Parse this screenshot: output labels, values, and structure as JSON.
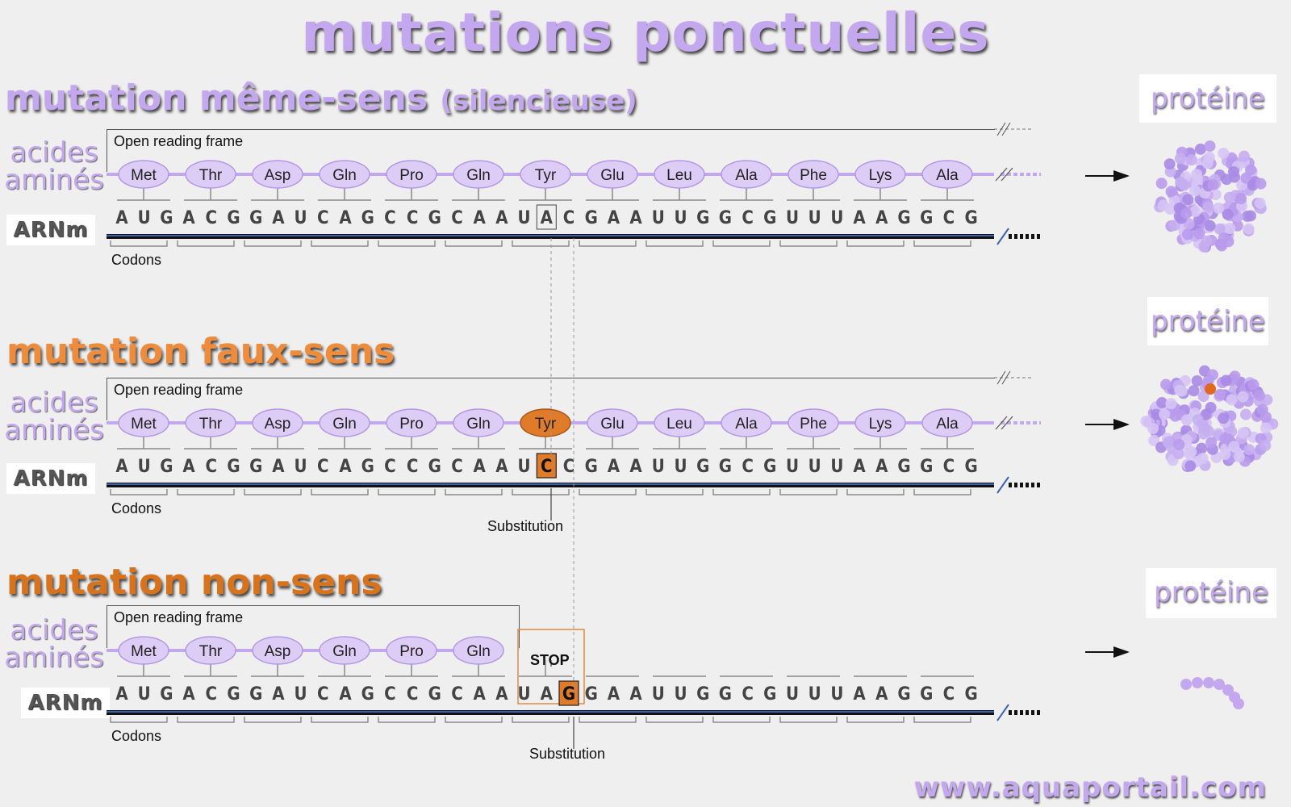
{
  "title": "mutations ponctuelles",
  "sections": [
    {
      "title": "mutation même-sens",
      "subtitle": "(silencieuse)"
    },
    {
      "title": "mutation faux-sens",
      "subtitle": ""
    },
    {
      "title": "mutation non-sens",
      "subtitle": ""
    }
  ],
  "labels": {
    "amino_acids": "acides aminés",
    "mrna": "ARNm",
    "open_reading_frame": "Open reading frame",
    "codons": "Codons",
    "substitution": "Substitution",
    "protein": "protéine",
    "stop": "STOP"
  },
  "amino_acids": [
    "Met",
    "Thr",
    "Asp",
    "Gln",
    "Pro",
    "Gln",
    "Tyr",
    "Glu",
    "Leu",
    "Ala",
    "Phe",
    "Lys",
    "Ala"
  ],
  "mrna": {
    "row1": "AUGACGGAUCAGCCGCAAUACGAAUUGGCGUUUAAGGCG",
    "row2": "AUGACGGAUCAGCCGCAAUCCGAAUUGGCGUUUAAGGCG",
    "row3": "AUGACGGAUCAGCCGCAAUAGGAAUUGGCGUUUAAGGCG"
  },
  "website": "www.aquaportail.com",
  "colors": {
    "lavender": "#c4a8ef",
    "orange": "#e07b2a",
    "dark_orange": "#d8731d",
    "navy_strand": "#1f2f55"
  }
}
